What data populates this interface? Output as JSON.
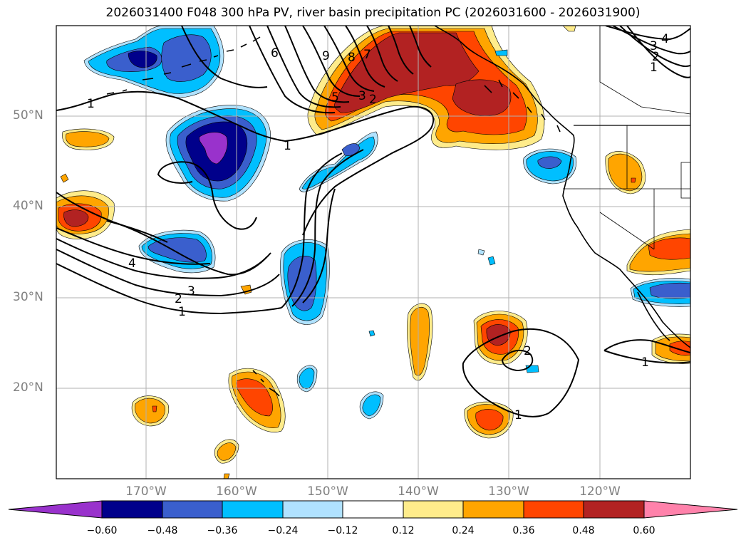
{
  "title": "2026031400 F048 300 hPa PV, river basin precipitation PC (2026031600 - 2026031900)",
  "lat_labels": [
    "50°N",
    "40°N",
    "30°N",
    "20°N"
  ],
  "lon_labels": [
    "170°W",
    "160°W",
    "150°W",
    "140°W",
    "130°W",
    "120°W"
  ],
  "contour_labels": [
    "1",
    "1",
    "2",
    "3",
    "4",
    "1",
    "2",
    "3",
    "5",
    "6",
    "7",
    "8",
    "9",
    "1",
    "2",
    "3",
    "4",
    "2",
    "1",
    "1"
  ],
  "colorbar": {
    "ticks": [
      "−0.60",
      "−0.48",
      "−0.36",
      "−0.24",
      "−0.12",
      "0.12",
      "0.24",
      "0.36",
      "0.48",
      "0.60"
    ],
    "colors": [
      "#9932cc",
      "#00008b",
      "#3a5fcd",
      "#00bfff",
      "#b0e2ff",
      "#ffffff",
      "#ffec8b",
      "#ffa500",
      "#ff4500",
      "#b22222",
      "#ff82ab"
    ]
  }
}
